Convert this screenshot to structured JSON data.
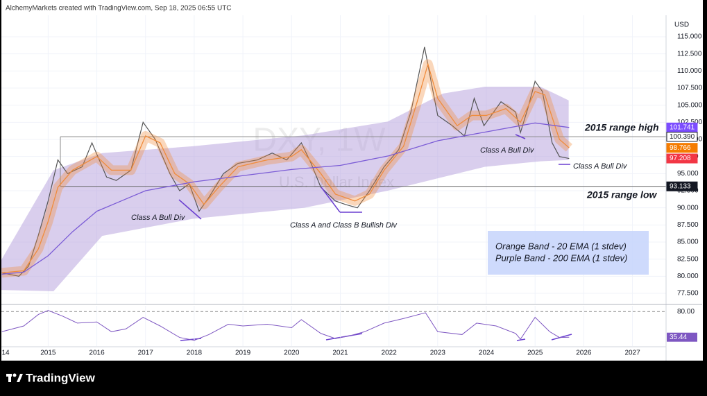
{
  "header": "AlchemyMarkets created with TradingView.com, Sep 18, 2025 06:55 UTC",
  "watermark": "DXY, 1W",
  "watermark_sub": "U.S. Dollar Index",
  "currency": "USD",
  "brand": "TradingView",
  "legend_box": [
    "Orange Band - 20 EMA (1 stdev)",
    "Purple Band - 200 EMA (1 stdev)"
  ],
  "annotations": [
    "2015 range high",
    "2015 range low",
    "Class A Bull Div",
    "Class A and Class B Bullish Div",
    "Class A Bull Div",
    "Class A Bull Div"
  ],
  "chart_data": {
    "type": "line",
    "xlim": [
      2014.04,
      2027.69
    ],
    "xticks": [
      {
        "value": 2014,
        "label": "14"
      },
      2015,
      2016,
      2017,
      2018,
      2019,
      2020,
      2021,
      2022,
      2023,
      2024,
      2025,
      2026,
      2027
    ],
    "ylim": [
      75.98,
      118.14
    ],
    "yticks": [
      {
        "value": 77.5,
        "label": "77.500"
      },
      {
        "value": 80,
        "label": "80.000"
      },
      {
        "value": 82.5,
        "label": "82.500"
      },
      {
        "value": 85,
        "label": "85.000"
      },
      {
        "value": 87.5,
        "label": "87.500"
      },
      {
        "value": 90,
        "label": "90.000"
      },
      {
        "value": 92.5,
        "label": "92.500"
      },
      {
        "value": 95,
        "label": "95.000"
      },
      {
        "value": 97.5,
        "label": "97.500"
      },
      {
        "value": 100,
        "label": "100.000"
      },
      {
        "value": 102.5,
        "label": "102.500"
      },
      {
        "value": 105,
        "label": "105.000"
      },
      {
        "value": 107.5,
        "label": "107.500"
      },
      {
        "value": 110,
        "label": "110.000"
      },
      {
        "value": 112.5,
        "label": "112.500"
      },
      {
        "value": 115,
        "label": "115.000"
      }
    ],
    "grid": true,
    "band": {
      "color": "#b39ddb",
      "x": [
        2014.04,
        2015.11,
        2016.11,
        2017.97,
        2020.26,
        2021.97,
        2023.11,
        2023.97,
        2025.11,
        2025.69
      ],
      "upper": [
        82.4,
        95.5,
        98,
        99,
        100.6,
        102.6,
        106.7,
        107.7,
        107.7,
        105.7
      ],
      "lower": [
        78,
        77.8,
        85.9,
        88.4,
        90,
        92.5,
        94.5,
        96,
        96.8,
        97
      ]
    },
    "series": [
      {
        "name": "DXY",
        "color": "#555555",
        "x": [
          2014.05,
          2014.4,
          2014.6,
          2014.8,
          2015.0,
          2015.2,
          2015.4,
          2015.7,
          2015.9,
          2016.2,
          2016.4,
          2016.7,
          2016.95,
          2017.2,
          2017.5,
          2017.7,
          2017.9,
          2018.1,
          2018.3,
          2018.6,
          2018.9,
          2019.3,
          2019.6,
          2019.9,
          2020.2,
          2020.4,
          2020.6,
          2020.9,
          2021.1,
          2021.35,
          2021.6,
          2021.9,
          2022.2,
          2022.45,
          2022.73,
          2022.85,
          2023.0,
          2023.3,
          2023.55,
          2023.75,
          2023.95,
          2024.3,
          2024.6,
          2024.7,
          2024.85,
          2025.0,
          2025.15,
          2025.35,
          2025.5,
          2025.7
        ],
        "values": [
          80.5,
          80,
          81.5,
          86,
          91,
          97,
          95,
          96,
          99.5,
          94.5,
          94,
          95.5,
          102.5,
          100,
          95,
          92.5,
          93.5,
          89.5,
          91.5,
          95,
          96.5,
          97,
          98,
          97,
          99.5,
          96.5,
          93,
          91,
          90.5,
          90,
          92.5,
          96,
          98.5,
          104,
          113.5,
          109,
          103.5,
          102,
          100.5,
          106,
          102,
          105.5,
          104,
          101,
          104.5,
          108.5,
          107,
          99.5,
          97.5,
          97.208
        ]
      },
      {
        "name": "EMA 20",
        "color": "#f08c3c",
        "x": [
          2014.05,
          2014.5,
          2014.8,
          2015.0,
          2015.2,
          2015.5,
          2016.0,
          2016.3,
          2016.7,
          2017.0,
          2017.3,
          2017.6,
          2017.9,
          2018.2,
          2018.5,
          2018.9,
          2019.5,
          2020.0,
          2020.2,
          2020.6,
          2020.9,
          2021.3,
          2021.6,
          2021.9,
          2022.3,
          2022.6,
          2022.8,
          2023.0,
          2023.4,
          2023.7,
          2024.0,
          2024.4,
          2024.7,
          2025.0,
          2025.2,
          2025.5,
          2025.7
        ],
        "values": [
          80.5,
          80.8,
          84,
          88,
          93,
          95.5,
          97.5,
          95.5,
          95.5,
          100.5,
          99.5,
          95,
          93.5,
          90.5,
          93,
          96,
          97,
          97.5,
          98.5,
          95,
          92,
          91,
          92,
          95.5,
          99,
          106,
          111,
          106,
          102,
          103.5,
          103.5,
          104.5,
          102.5,
          107,
          106.5,
          100,
          98.766
        ]
      },
      {
        "name": "EMA 200",
        "color": "#7b5cd6",
        "x": [
          2014.05,
          2014.5,
          2015,
          2015.5,
          2016,
          2016.5,
          2017,
          2018,
          2019,
          2020,
          2021,
          2022,
          2023,
          2024,
          2025,
          2025.7
        ],
        "values": [
          80.3,
          80.6,
          83,
          86.5,
          89.5,
          91,
          92.5,
          93.8,
          94.7,
          95.6,
          96.2,
          97.6,
          99.8,
          101.1,
          102.4,
          101.741
        ]
      }
    ],
    "price_labels": [
      {
        "value": 101.741,
        "label": "101.741",
        "color": "#7c4dff"
      },
      {
        "value": 100.39,
        "label": "100.390",
        "color": "#ffffff"
      },
      {
        "value": 98.766,
        "label": "98.766",
        "color": "#f57c00"
      },
      {
        "value": 97.208,
        "label": "97.208",
        "color": "#f23645"
      },
      {
        "value": 93.133,
        "label": "93.133",
        "color": "#131722"
      }
    ],
    "rsi": {
      "color": "#7e57c2",
      "ylim": [
        20,
        90
      ],
      "yticks": [
        {
          "value": 80,
          "label": "80.00"
        }
      ],
      "x": [
        2014.05,
        2014.5,
        2014.8,
        2015.0,
        2015.3,
        2015.6,
        2016.0,
        2016.3,
        2016.6,
        2016.95,
        2017.3,
        2017.7,
        2018.0,
        2018.3,
        2018.7,
        2019.0,
        2019.5,
        2020.0,
        2020.2,
        2020.6,
        2020.9,
        2021.2,
        2021.5,
        2021.9,
        2022.3,
        2022.75,
        2023.0,
        2023.5,
        2023.8,
        2024.2,
        2024.6,
        2024.7,
        2025.0,
        2025.3,
        2025.5,
        2025.7
      ],
      "values": [
        45,
        55,
        75,
        82,
        72,
        60,
        62,
        45,
        50,
        70,
        55,
        35,
        30,
        40,
        58,
        55,
        58,
        52,
        66,
        42,
        33,
        38,
        45,
        60,
        68,
        78,
        45,
        40,
        60,
        55,
        42,
        32,
        70,
        45,
        35,
        35.44
      ],
      "last_label": {
        "value": 35.44,
        "label": "35.44"
      }
    }
  }
}
